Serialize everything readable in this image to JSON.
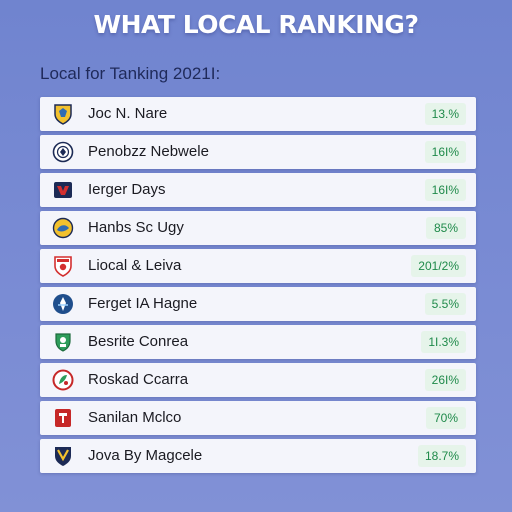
{
  "page": {
    "title": "WHAT LOCAL RANKING?",
    "subtitle": "Local for Tanking 2021I:"
  },
  "rankings": [
    {
      "name": "Joc N. Nare",
      "value": "13.%",
      "icon": "shield-crest-icon",
      "accent": "#d8a526"
    },
    {
      "name": "Penobzz Nebwele",
      "value": "16I%",
      "icon": "round-badge-crest-icon",
      "accent": "#1c2a55"
    },
    {
      "name": "Ierger Days",
      "value": "16I%",
      "icon": "square-shield-crest-icon",
      "accent": "#c62828"
    },
    {
      "name": "Hanbs Sc Ugy",
      "value": "85%",
      "icon": "circle-crest-icon",
      "accent": "#2f6bb3"
    },
    {
      "name": "Liocal & Leiva",
      "value": "201/2%",
      "icon": "red-shield-crest-icon",
      "accent": "#d32f2f"
    },
    {
      "name": "Ferget IA Hagne",
      "value": "5.5%",
      "icon": "blue-circle-crest-icon",
      "accent": "#1f4e8c"
    },
    {
      "name": "Besrite Conrea",
      "value": "1I.3%",
      "icon": "green-crest-icon",
      "accent": "#2e9d5b"
    },
    {
      "name": "Roskad Ccarra",
      "value": "26I%",
      "icon": "red-green-crest-icon",
      "accent": "#c62828"
    },
    {
      "name": "Sanilan Mclco",
      "value": "70%",
      "icon": "red-square-crest-icon",
      "accent": "#c62828"
    },
    {
      "name": "Jova By Magcele",
      "value": "18.7%",
      "icon": "yellow-navy-crest-icon",
      "accent": "#e0b12a"
    }
  ],
  "colors": {
    "background": "#7587d1",
    "badge_bg": "#e6f4ea",
    "badge_text": "#1f8a4a"
  }
}
